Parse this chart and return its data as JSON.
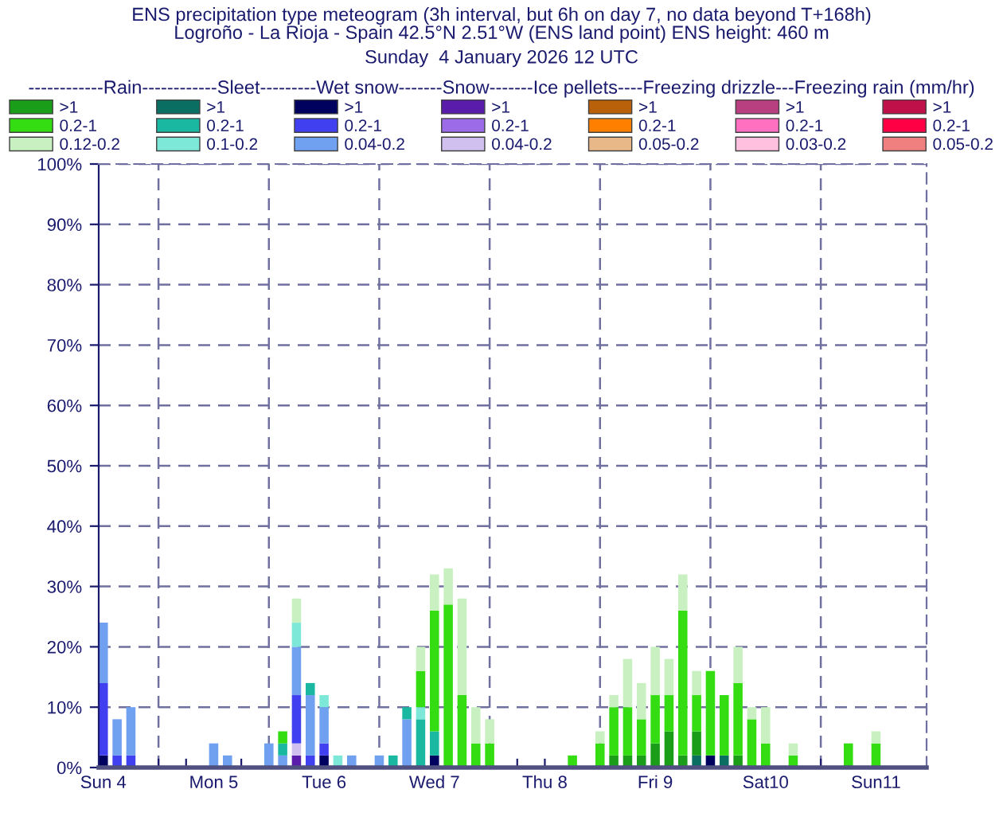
{
  "chart_data": {
    "type": "bar",
    "stacked": true,
    "title": "ENS precipitation type meteogram (3h interval, but 6h on day 7, no data beyond T+168h)",
    "subtitle": "Logroño - La Rioja - Spain 42.5°N 2.51°W (ENS land point) ENS height: 460 m\nSunday  4 January 2026 12 UTC",
    "legend_title": "------------Rain------------Sleet---------Wet snow-------Snow-------Ice pellets----Freezing drizzle---Freezing rain (mm/hr)",
    "legend": "top",
    "grid": "y",
    "x": [
      "2026-01-04T12:00",
      "2026-01-04T15:00",
      "2026-01-04T18:00",
      "2026-01-04T21:00",
      "2026-01-05T00:00",
      "2026-01-05T03:00",
      "2026-01-05T06:00",
      "2026-01-05T09:00",
      "2026-01-05T12:00",
      "2026-01-05T15:00",
      "2026-01-05T18:00",
      "2026-01-05T21:00",
      "2026-01-06T00:00",
      "2026-01-06T03:00",
      "2026-01-06T06:00",
      "2026-01-06T09:00",
      "2026-01-06T12:00",
      "2026-01-06T15:00",
      "2026-01-06T18:00",
      "2026-01-06T21:00",
      "2026-01-07T00:00",
      "2026-01-07T03:00",
      "2026-01-07T06:00",
      "2026-01-07T09:00",
      "2026-01-07T12:00",
      "2026-01-07T15:00",
      "2026-01-07T18:00",
      "2026-01-07T21:00",
      "2026-01-08T00:00",
      "2026-01-08T03:00",
      "2026-01-08T06:00",
      "2026-01-08T09:00",
      "2026-01-08T12:00",
      "2026-01-08T15:00",
      "2026-01-08T18:00",
      "2026-01-08T21:00",
      "2026-01-09T00:00",
      "2026-01-09T03:00",
      "2026-01-09T06:00",
      "2026-01-09T09:00",
      "2026-01-09T12:00",
      "2026-01-09T15:00",
      "2026-01-09T18:00",
      "2026-01-09T21:00",
      "2026-01-10T00:00",
      "2026-01-10T03:00",
      "2026-01-10T06:00",
      "2026-01-10T09:00",
      "2026-01-10T12:00",
      "2026-01-10T18:00",
      "2026-01-11T00:00",
      "2026-01-11T06:00",
      "2026-01-11T12:00"
    ],
    "xlim": [
      "2026-01-04T11:00",
      "2026-01-11T23:00"
    ],
    "xticks": [
      {
        "value": "2026-01-04T12:00",
        "label": "Sun 4"
      },
      {
        "value": "2026-01-04T18:00",
        "label": null
      },
      {
        "value": "2026-01-05T00:00",
        "label": null
      },
      {
        "value": "2026-01-05T06:00",
        "label": null
      },
      {
        "value": "2026-01-05T12:00",
        "label": "Mon 5"
      },
      {
        "value": "2026-01-05T18:00",
        "label": null
      },
      {
        "value": "2026-01-06T00:00",
        "label": null
      },
      {
        "value": "2026-01-06T06:00",
        "label": null
      },
      {
        "value": "2026-01-06T12:00",
        "label": "Tue 6"
      },
      {
        "value": "2026-01-06T18:00",
        "label": null
      },
      {
        "value": "2026-01-07T00:00",
        "label": null
      },
      {
        "value": "2026-01-07T06:00",
        "label": null
      },
      {
        "value": "2026-01-07T12:00",
        "label": "Wed 7"
      },
      {
        "value": "2026-01-07T18:00",
        "label": null
      },
      {
        "value": "2026-01-08T00:00",
        "label": null
      },
      {
        "value": "2026-01-08T06:00",
        "label": null
      },
      {
        "value": "2026-01-08T12:00",
        "label": "Thu 8"
      },
      {
        "value": "2026-01-08T18:00",
        "label": null
      },
      {
        "value": "2026-01-09T00:00",
        "label": null
      },
      {
        "value": "2026-01-09T06:00",
        "label": null
      },
      {
        "value": "2026-01-09T12:00",
        "label": "Fri 9"
      },
      {
        "value": "2026-01-09T18:00",
        "label": null
      },
      {
        "value": "2026-01-10T00:00",
        "label": null
      },
      {
        "value": "2026-01-10T06:00",
        "label": null
      },
      {
        "value": "2026-01-10T12:00",
        "label": "Sat10"
      },
      {
        "value": "2026-01-10T18:00",
        "label": null
      },
      {
        "value": "2026-01-11T00:00",
        "label": null
      },
      {
        "value": "2026-01-11T06:00",
        "label": null
      },
      {
        "value": "2026-01-11T12:00",
        "label": "Sun11"
      }
    ],
    "ylim": [
      0,
      100
    ],
    "yticks": [
      {
        "value": 0,
        "label": "0%"
      },
      {
        "value": 10,
        "label": "10%"
      },
      {
        "value": 20,
        "label": "20%"
      },
      {
        "value": 30,
        "label": "30%"
      },
      {
        "value": 40,
        "label": "40%"
      },
      {
        "value": 50,
        "label": "50%"
      },
      {
        "value": 60,
        "label": "60%"
      },
      {
        "value": 70,
        "label": "70%"
      },
      {
        "value": 80,
        "label": "80%"
      },
      {
        "value": 90,
        "label": "90%"
      },
      {
        "value": 100,
        "label": "100%"
      }
    ],
    "ref_lines": [
      {
        "axis": "x",
        "value": "2026-01-05T00:00",
        "line_style": "dashed",
        "color": "#7070a0"
      },
      {
        "axis": "x",
        "value": "2026-01-06T00:00",
        "line_style": "dashed",
        "color": "#7070a0"
      },
      {
        "axis": "x",
        "value": "2026-01-07T00:00",
        "line_style": "dashed",
        "color": "#7070a0"
      },
      {
        "axis": "x",
        "value": "2026-01-08T00:00",
        "line_style": "dashed",
        "color": "#7070a0"
      },
      {
        "axis": "x",
        "value": "2026-01-09T00:00",
        "line_style": "dashed",
        "color": "#7070a0"
      },
      {
        "axis": "x",
        "value": "2026-01-10T00:00",
        "line_style": "dashed",
        "color": "#7070a0"
      },
      {
        "axis": "x",
        "value": "2026-01-11T00:00",
        "line_style": "dashed",
        "color": "#7070a0"
      }
    ],
    "series": [
      {
        "name": ">1",
        "color": "#c0104a",
        "values": [
          null,
          null,
          null,
          null,
          null,
          null,
          null,
          null,
          null,
          null,
          null,
          null,
          null,
          null,
          null,
          null,
          null,
          null,
          null,
          null,
          null,
          null,
          null,
          null,
          null,
          null,
          null,
          null,
          null,
          null,
          null,
          null,
          null,
          null,
          null,
          null,
          null,
          null,
          null,
          null,
          null,
          null,
          null,
          null,
          null,
          null,
          null,
          null,
          null,
          null,
          null,
          null,
          null
        ]
      },
      {
        "name": "0.2-1",
        "color": "#ff0044",
        "values": [
          null,
          null,
          null,
          null,
          null,
          null,
          null,
          null,
          null,
          null,
          null,
          null,
          null,
          null,
          null,
          null,
          null,
          null,
          null,
          null,
          null,
          null,
          null,
          null,
          null,
          null,
          null,
          null,
          null,
          null,
          null,
          null,
          null,
          null,
          null,
          null,
          null,
          null,
          null,
          null,
          null,
          null,
          null,
          null,
          null,
          null,
          null,
          null,
          null,
          null,
          null,
          null,
          null
        ]
      },
      {
        "name": "0.05-0.2",
        "color": "#f08080",
        "values": [
          null,
          null,
          null,
          null,
          null,
          null,
          null,
          null,
          null,
          null,
          null,
          null,
          null,
          null,
          null,
          null,
          null,
          null,
          null,
          null,
          null,
          null,
          null,
          null,
          null,
          null,
          null,
          null,
          null,
          null,
          null,
          null,
          null,
          null,
          null,
          null,
          null,
          null,
          null,
          null,
          null,
          null,
          null,
          null,
          null,
          null,
          null,
          null,
          null,
          null,
          null,
          null,
          null
        ]
      },
      {
        "name": ">1",
        "color": "#b84080",
        "values": [
          null,
          null,
          null,
          null,
          null,
          null,
          null,
          null,
          null,
          null,
          null,
          null,
          null,
          null,
          null,
          null,
          null,
          null,
          null,
          null,
          null,
          null,
          null,
          null,
          null,
          null,
          null,
          null,
          null,
          null,
          null,
          null,
          null,
          null,
          null,
          null,
          null,
          null,
          null,
          null,
          null,
          null,
          null,
          null,
          null,
          null,
          null,
          null,
          null,
          null,
          null,
          null,
          null
        ]
      },
      {
        "name": "0.2-1",
        "color": "#ff70c0",
        "values": [
          null,
          null,
          null,
          null,
          null,
          null,
          null,
          null,
          null,
          null,
          null,
          null,
          null,
          null,
          null,
          null,
          null,
          null,
          null,
          null,
          null,
          null,
          null,
          null,
          null,
          null,
          null,
          null,
          null,
          null,
          null,
          null,
          null,
          null,
          null,
          null,
          null,
          null,
          null,
          null,
          null,
          null,
          null,
          null,
          null,
          null,
          null,
          null,
          null,
          null,
          null,
          null,
          null
        ]
      },
      {
        "name": "0.03-0.2",
        "color": "#ffc0e0",
        "values": [
          null,
          null,
          null,
          null,
          null,
          null,
          null,
          null,
          null,
          null,
          null,
          null,
          null,
          null,
          null,
          null,
          null,
          null,
          null,
          null,
          null,
          null,
          null,
          null,
          null,
          null,
          null,
          null,
          null,
          null,
          null,
          null,
          null,
          null,
          null,
          null,
          null,
          null,
          null,
          null,
          null,
          null,
          null,
          null,
          null,
          null,
          null,
          null,
          null,
          null,
          null,
          null,
          null
        ]
      },
      {
        "name": ">1",
        "color": "#b8600a",
        "values": [
          null,
          null,
          null,
          null,
          null,
          null,
          null,
          null,
          null,
          null,
          null,
          null,
          null,
          null,
          null,
          null,
          null,
          null,
          null,
          null,
          null,
          null,
          null,
          null,
          null,
          null,
          null,
          null,
          null,
          null,
          null,
          null,
          null,
          null,
          null,
          null,
          null,
          null,
          null,
          null,
          null,
          null,
          null,
          null,
          null,
          null,
          null,
          null,
          null,
          null,
          null,
          null,
          null
        ]
      },
      {
        "name": "0.2-1",
        "color": "#ff8000",
        "values": [
          null,
          null,
          null,
          null,
          null,
          null,
          null,
          null,
          null,
          null,
          null,
          null,
          null,
          null,
          null,
          null,
          null,
          null,
          null,
          null,
          null,
          null,
          null,
          null,
          null,
          null,
          null,
          null,
          null,
          null,
          null,
          null,
          null,
          null,
          null,
          null,
          null,
          null,
          null,
          null,
          null,
          null,
          null,
          null,
          null,
          null,
          null,
          null,
          null,
          null,
          null,
          null,
          null
        ]
      },
      {
        "name": "0.05-0.2",
        "color": "#e8b888",
        "values": [
          null,
          null,
          null,
          null,
          null,
          null,
          null,
          null,
          null,
          null,
          null,
          null,
          null,
          null,
          null,
          null,
          null,
          null,
          null,
          null,
          null,
          null,
          null,
          null,
          null,
          null,
          null,
          null,
          null,
          null,
          null,
          null,
          null,
          null,
          null,
          null,
          null,
          null,
          null,
          null,
          null,
          null,
          null,
          null,
          null,
          null,
          null,
          null,
          null,
          null,
          null,
          null,
          null
        ]
      },
      {
        "name": ">1",
        "color": "#5a1cab",
        "values": [
          null,
          null,
          null,
          null,
          null,
          null,
          null,
          null,
          null,
          null,
          null,
          null,
          null,
          null,
          2,
          null,
          null,
          null,
          null,
          null,
          null,
          null,
          null,
          null,
          null,
          null,
          null,
          null,
          null,
          null,
          null,
          null,
          null,
          null,
          null,
          null,
          null,
          null,
          null,
          null,
          null,
          null,
          null,
          null,
          null,
          null,
          null,
          null,
          null,
          null,
          null,
          null,
          null
        ]
      },
      {
        "name": "0.2-1",
        "color": "#9b6be8",
        "values": [
          null,
          null,
          null,
          null,
          null,
          null,
          null,
          null,
          null,
          null,
          null,
          null,
          null,
          null,
          null,
          null,
          null,
          null,
          null,
          null,
          null,
          null,
          null,
          null,
          null,
          null,
          null,
          null,
          null,
          null,
          null,
          null,
          null,
          null,
          null,
          null,
          null,
          null,
          null,
          null,
          null,
          null,
          null,
          null,
          null,
          null,
          null,
          null,
          null,
          null,
          null,
          null,
          null
        ]
      },
      {
        "name": "0.04-0.2",
        "color": "#d0c0f0",
        "values": [
          null,
          null,
          null,
          null,
          null,
          null,
          null,
          null,
          null,
          null,
          null,
          null,
          null,
          null,
          2,
          null,
          null,
          null,
          null,
          null,
          null,
          null,
          null,
          null,
          null,
          null,
          null,
          null,
          null,
          null,
          null,
          null,
          null,
          null,
          null,
          null,
          null,
          null,
          null,
          null,
          null,
          null,
          null,
          null,
          null,
          null,
          null,
          null,
          null,
          null,
          null,
          null,
          null
        ]
      },
      {
        "name": ">1",
        "color": "#00005e",
        "values": [
          2,
          null,
          null,
          null,
          null,
          null,
          null,
          null,
          null,
          null,
          null,
          null,
          null,
          null,
          null,
          null,
          2,
          null,
          null,
          null,
          null,
          null,
          null,
          null,
          2,
          null,
          null,
          null,
          null,
          null,
          null,
          null,
          null,
          null,
          null,
          null,
          null,
          null,
          null,
          null,
          null,
          null,
          null,
          null,
          2,
          null,
          null,
          null,
          null,
          null,
          null,
          null,
          null
        ]
      },
      {
        "name": "0.2-1",
        "color": "#4040f0",
        "values": [
          12,
          2,
          2,
          null,
          null,
          null,
          null,
          null,
          null,
          null,
          null,
          null,
          null,
          null,
          8,
          2,
          2,
          null,
          null,
          null,
          null,
          null,
          null,
          null,
          null,
          null,
          null,
          null,
          null,
          null,
          null,
          null,
          null,
          null,
          null,
          null,
          null,
          null,
          null,
          null,
          null,
          null,
          null,
          null,
          null,
          null,
          null,
          null,
          null,
          null,
          null,
          null,
          null
        ]
      },
      {
        "name": "0.04-0.2",
        "color": "#70a0f0",
        "values": [
          10,
          6,
          8,
          null,
          null,
          null,
          null,
          null,
          4,
          2,
          null,
          null,
          4,
          2,
          8,
          10,
          6,
          null,
          2,
          null,
          2,
          null,
          8,
          null,
          null,
          null,
          null,
          null,
          null,
          null,
          null,
          null,
          null,
          null,
          null,
          null,
          null,
          null,
          null,
          null,
          null,
          null,
          null,
          null,
          null,
          null,
          null,
          null,
          null,
          null,
          null,
          null,
          null
        ]
      },
      {
        "name": ">1",
        "color": "#0b6e62",
        "values": [
          null,
          null,
          null,
          null,
          null,
          null,
          null,
          null,
          null,
          null,
          null,
          null,
          null,
          null,
          null,
          null,
          null,
          null,
          null,
          null,
          null,
          null,
          null,
          null,
          null,
          null,
          null,
          null,
          null,
          null,
          null,
          null,
          null,
          null,
          null,
          null,
          null,
          null,
          null,
          null,
          null,
          null,
          null,
          2,
          null,
          2,
          null,
          null,
          null,
          null,
          null,
          null,
          null
        ]
      },
      {
        "name": "0.2-1",
        "color": "#1ab8a0",
        "values": [
          null,
          null,
          null,
          null,
          null,
          null,
          null,
          null,
          null,
          null,
          null,
          null,
          null,
          2,
          null,
          2,
          null,
          null,
          null,
          null,
          null,
          2,
          2,
          8,
          4,
          null,
          null,
          null,
          null,
          null,
          null,
          null,
          null,
          null,
          null,
          null,
          null,
          null,
          null,
          null,
          null,
          null,
          null,
          null,
          null,
          null,
          null,
          null,
          null,
          null,
          null,
          null,
          null
        ]
      },
      {
        "name": "0.1-0.2",
        "color": "#7ee8d8",
        "values": [
          null,
          null,
          null,
          null,
          null,
          null,
          null,
          null,
          null,
          null,
          null,
          null,
          null,
          null,
          4,
          null,
          2,
          2,
          null,
          null,
          null,
          null,
          null,
          2,
          null,
          null,
          null,
          null,
          null,
          null,
          null,
          null,
          null,
          null,
          null,
          null,
          null,
          null,
          null,
          null,
          null,
          null,
          null,
          null,
          null,
          null,
          null,
          null,
          null,
          null,
          null,
          null,
          null
        ]
      },
      {
        "name": ">1",
        "color": "#1a9e1a",
        "values": [
          null,
          null,
          null,
          null,
          null,
          null,
          null,
          null,
          null,
          null,
          null,
          null,
          null,
          null,
          null,
          null,
          null,
          null,
          null,
          null,
          null,
          null,
          null,
          null,
          null,
          null,
          null,
          null,
          null,
          null,
          null,
          null,
          null,
          null,
          null,
          null,
          null,
          2,
          2,
          2,
          4,
          6,
          2,
          4,
          null,
          null,
          2,
          null,
          null,
          null,
          null,
          null,
          null
        ]
      },
      {
        "name": "0.2-1",
        "color": "#33dd11",
        "values": [
          null,
          null,
          null,
          null,
          null,
          null,
          null,
          null,
          null,
          null,
          null,
          null,
          null,
          2,
          null,
          null,
          null,
          null,
          null,
          null,
          null,
          null,
          null,
          6,
          20,
          27,
          12,
          4,
          4,
          null,
          null,
          null,
          null,
          null,
          2,
          null,
          4,
          8,
          8,
          6,
          8,
          6,
          24,
          6,
          14,
          10,
          12,
          8,
          4,
          2,
          null,
          4,
          4
        ]
      },
      {
        "name": "0.12-0.2",
        "color": "#c8f0c0",
        "values": [
          null,
          null,
          null,
          null,
          null,
          null,
          null,
          null,
          null,
          null,
          null,
          null,
          null,
          null,
          4,
          null,
          null,
          null,
          null,
          null,
          null,
          null,
          null,
          4,
          6,
          6,
          16,
          6,
          4,
          null,
          null,
          null,
          null,
          null,
          null,
          null,
          2,
          2,
          8,
          6,
          8,
          6,
          6,
          4,
          null,
          null,
          6,
          2,
          6,
          2,
          null,
          null,
          2
        ]
      }
    ]
  }
}
